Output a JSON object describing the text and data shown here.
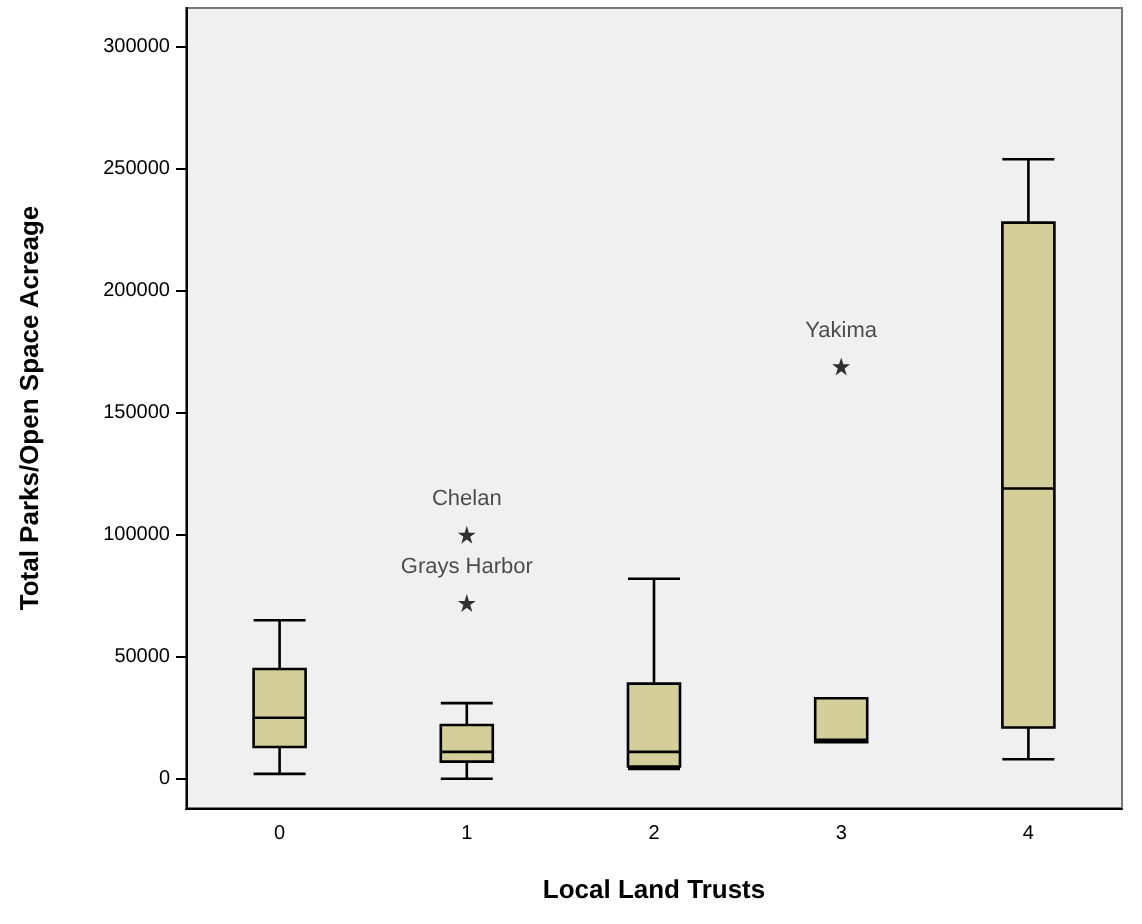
{
  "chart_data": {
    "type": "box",
    "xlabel": "Local Land Trusts",
    "ylabel": "Total Parks/Open Space Acreage",
    "categories": [
      "0",
      "1",
      "2",
      "3",
      "4"
    ],
    "color": "#d4cf9a",
    "boxes": [
      {
        "low": 2000,
        "q1": 13000,
        "median": 25000,
        "q3": 45000,
        "high": 65000
      },
      {
        "low": 0,
        "q1": 7000,
        "median": 11000,
        "q3": 22000,
        "high": 31000,
        "outliers": [
          72000,
          100000
        ]
      },
      {
        "low": 4000,
        "q1": 5000,
        "median": 11000,
        "q3": 39000,
        "high": 82000
      },
      {
        "low": 15000,
        "q1": 15000,
        "median": 16000,
        "q3": 33000,
        "high": 33000,
        "outliers": [
          169000
        ]
      },
      {
        "low": 8000,
        "q1": 21000,
        "median": 119000,
        "q3": 228000,
        "high": 254000
      }
    ],
    "marker": "star",
    "annotations": [
      "Grays Harbor",
      "Chelan",
      "Yakima"
    ],
    "ylim": [
      -12000,
      316000
    ],
    "yticks": [
      0,
      50000,
      100000,
      150000,
      200000,
      250000,
      300000
    ],
    "grid": false
  }
}
